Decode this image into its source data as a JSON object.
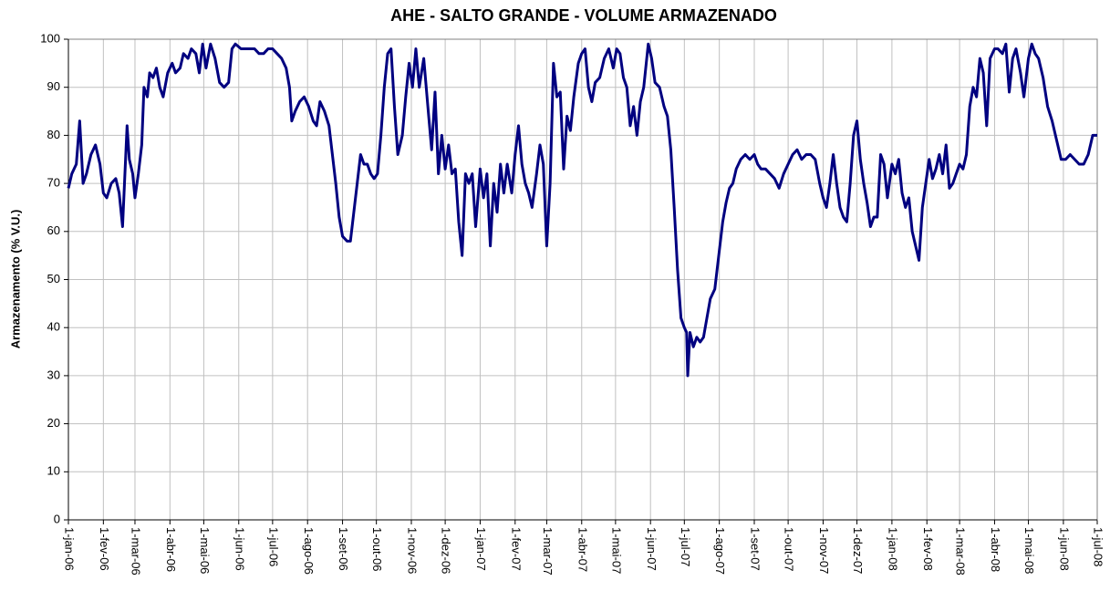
{
  "chart_data": {
    "type": "line",
    "title": "AHE - SALTO GRANDE - VOLUME ARMAZENADO",
    "y_label": "Armazenamento (% V.U.)",
    "grid": true,
    "ylim": [
      0,
      100
    ],
    "yticks": [
      0,
      10,
      20,
      30,
      40,
      50,
      60,
      70,
      80,
      90,
      100
    ],
    "xlim": [
      "2006-01-01",
      "2008-07-01"
    ],
    "xticks": [
      {
        "value": "2006-01-01",
        "label": "1-jan-06"
      },
      {
        "value": "2006-02-01",
        "label": "1-fev-06"
      },
      {
        "value": "2006-03-01",
        "label": "1-mar-06"
      },
      {
        "value": "2006-04-01",
        "label": "1-abr-06"
      },
      {
        "value": "2006-05-01",
        "label": "1-mai-06"
      },
      {
        "value": "2006-06-01",
        "label": "1-jun-06"
      },
      {
        "value": "2006-07-01",
        "label": "1-jul-06"
      },
      {
        "value": "2006-08-01",
        "label": "1-ago-06"
      },
      {
        "value": "2006-09-01",
        "label": "1-set-06"
      },
      {
        "value": "2006-10-01",
        "label": "1-out-06"
      },
      {
        "value": "2006-11-01",
        "label": "1-nov-06"
      },
      {
        "value": "2006-12-01",
        "label": "1-dez-06"
      },
      {
        "value": "2007-01-01",
        "label": "1-jan-07"
      },
      {
        "value": "2007-02-01",
        "label": "1-fev-07"
      },
      {
        "value": "2007-03-01",
        "label": "1-mar-07"
      },
      {
        "value": "2007-04-01",
        "label": "1-abr-07"
      },
      {
        "value": "2007-05-01",
        "label": "1-mai-07"
      },
      {
        "value": "2007-06-01",
        "label": "1-jun-07"
      },
      {
        "value": "2007-07-01",
        "label": "1-jul-07"
      },
      {
        "value": "2007-08-01",
        "label": "1-ago-07"
      },
      {
        "value": "2007-09-01",
        "label": "1-set-07"
      },
      {
        "value": "2007-10-01",
        "label": "1-out-07"
      },
      {
        "value": "2007-11-01",
        "label": "1-nov-07"
      },
      {
        "value": "2007-12-01",
        "label": "1-dez-07"
      },
      {
        "value": "2008-01-01",
        "label": "1-jan-08"
      },
      {
        "value": "2008-02-01",
        "label": "1-fev-08"
      },
      {
        "value": "2008-03-01",
        "label": "1-mar-08"
      },
      {
        "value": "2008-04-01",
        "label": "1-abr-08"
      },
      {
        "value": "2008-05-01",
        "label": "1-mai-08"
      },
      {
        "value": "2008-06-01",
        "label": "1-jun-08"
      },
      {
        "value": "2008-07-01",
        "label": "1-jul-08"
      }
    ],
    "x": [
      "2006-01-01",
      "2006-01-04",
      "2006-01-08",
      "2006-01-11",
      "2006-01-14",
      "2006-01-17",
      "2006-01-21",
      "2006-01-25",
      "2006-01-29",
      "2006-02-01",
      "2006-02-04",
      "2006-02-08",
      "2006-02-12",
      "2006-02-15",
      "2006-02-18",
      "2006-02-22",
      "2006-02-24",
      "2006-02-27",
      "2006-03-01",
      "2006-03-04",
      "2006-03-07",
      "2006-03-09",
      "2006-03-12",
      "2006-03-14",
      "2006-03-17",
      "2006-03-20",
      "2006-03-23",
      "2006-03-26",
      "2006-03-30",
      "2006-04-03",
      "2006-04-06",
      "2006-04-10",
      "2006-04-13",
      "2006-04-17",
      "2006-04-20",
      "2006-04-24",
      "2006-04-27",
      "2006-04-30",
      "2006-05-03",
      "2006-05-07",
      "2006-05-11",
      "2006-05-15",
      "2006-05-19",
      "2006-05-23",
      "2006-05-26",
      "2006-05-29",
      "2006-06-03",
      "2006-06-07",
      "2006-06-11",
      "2006-06-15",
      "2006-06-19",
      "2006-06-23",
      "2006-06-27",
      "2006-07-01",
      "2006-07-05",
      "2006-07-09",
      "2006-07-13",
      "2006-07-16",
      "2006-07-18",
      "2006-07-21",
      "2006-07-25",
      "2006-07-29",
      "2006-08-02",
      "2006-08-06",
      "2006-08-09",
      "2006-08-12",
      "2006-08-16",
      "2006-08-20",
      "2006-08-23",
      "2006-08-26",
      "2006-08-29",
      "2006-09-01",
      "2006-09-05",
      "2006-09-08",
      "2006-09-11",
      "2006-09-14",
      "2006-09-17",
      "2006-09-20",
      "2006-09-23",
      "2006-09-26",
      "2006-09-29",
      "2006-10-02",
      "2006-10-05",
      "2006-10-08",
      "2006-10-11",
      "2006-10-14",
      "2006-10-17",
      "2006-10-20",
      "2006-10-24",
      "2006-10-27",
      "2006-10-30",
      "2006-11-02",
      "2006-11-05",
      "2006-11-08",
      "2006-11-12",
      "2006-11-16",
      "2006-11-19",
      "2006-11-22",
      "2006-11-25",
      "2006-11-28",
      "2006-12-01",
      "2006-12-04",
      "2006-12-07",
      "2006-12-10",
      "2006-12-13",
      "2006-12-16",
      "2006-12-19",
      "2006-12-22",
      "2006-12-25",
      "2006-12-28",
      "2007-01-01",
      "2007-01-04",
      "2007-01-07",
      "2007-01-10",
      "2007-01-13",
      "2007-01-16",
      "2007-01-19",
      "2007-01-22",
      "2007-01-25",
      "2007-01-29",
      "2007-02-01",
      "2007-02-04",
      "2007-02-07",
      "2007-02-10",
      "2007-02-13",
      "2007-02-16",
      "2007-02-20",
      "2007-02-23",
      "2007-02-26",
      "2007-03-01",
      "2007-03-04",
      "2007-03-07",
      "2007-03-10",
      "2007-03-13",
      "2007-03-16",
      "2007-03-19",
      "2007-03-22",
      "2007-03-25",
      "2007-03-29",
      "2007-04-01",
      "2007-04-04",
      "2007-04-07",
      "2007-04-10",
      "2007-04-13",
      "2007-04-17",
      "2007-04-21",
      "2007-04-25",
      "2007-04-29",
      "2007-05-02",
      "2007-05-05",
      "2007-05-08",
      "2007-05-11",
      "2007-05-14",
      "2007-05-17",
      "2007-05-20",
      "2007-05-23",
      "2007-05-26",
      "2007-05-30",
      "2007-06-02",
      "2007-06-05",
      "2007-06-09",
      "2007-06-13",
      "2007-06-16",
      "2007-06-19",
      "2007-06-22",
      "2007-06-25",
      "2007-06-28",
      "2007-07-01",
      "2007-07-03",
      "2007-07-04",
      "2007-07-06",
      "2007-07-09",
      "2007-07-12",
      "2007-07-15",
      "2007-07-18",
      "2007-07-21",
      "2007-07-24",
      "2007-07-28",
      "2007-08-01",
      "2007-08-04",
      "2007-08-07",
      "2007-08-10",
      "2007-08-13",
      "2007-08-16",
      "2007-08-20",
      "2007-08-24",
      "2007-08-28",
      "2007-09-01",
      "2007-09-04",
      "2007-09-07",
      "2007-09-11",
      "2007-09-15",
      "2007-09-19",
      "2007-09-23",
      "2007-09-27",
      "2007-10-01",
      "2007-10-05",
      "2007-10-09",
      "2007-10-13",
      "2007-10-17",
      "2007-10-21",
      "2007-10-25",
      "2007-10-29",
      "2007-11-01",
      "2007-11-04",
      "2007-11-07",
      "2007-11-10",
      "2007-11-13",
      "2007-11-16",
      "2007-11-19",
      "2007-11-22",
      "2007-11-25",
      "2007-11-28",
      "2007-12-01",
      "2007-12-04",
      "2007-12-07",
      "2007-12-10",
      "2007-12-13",
      "2007-12-16",
      "2007-12-19",
      "2007-12-22",
      "2007-12-25",
      "2007-12-28",
      "2008-01-01",
      "2008-01-04",
      "2008-01-07",
      "2008-01-10",
      "2008-01-13",
      "2008-01-16",
      "2008-01-19",
      "2008-01-22",
      "2008-01-25",
      "2008-01-28",
      "2008-01-31",
      "2008-02-03",
      "2008-02-06",
      "2008-02-09",
      "2008-02-12",
      "2008-02-15",
      "2008-02-18",
      "2008-02-21",
      "2008-02-24",
      "2008-02-27",
      "2008-03-01",
      "2008-03-04",
      "2008-03-07",
      "2008-03-10",
      "2008-03-13",
      "2008-03-16",
      "2008-03-19",
      "2008-03-22",
      "2008-03-25",
      "2008-03-28",
      "2008-04-01",
      "2008-04-04",
      "2008-04-08",
      "2008-04-11",
      "2008-04-14",
      "2008-04-17",
      "2008-04-20",
      "2008-04-24",
      "2008-04-27",
      "2008-05-01",
      "2008-05-04",
      "2008-05-07",
      "2008-05-10",
      "2008-05-14",
      "2008-05-18",
      "2008-05-22",
      "2008-05-26",
      "2008-05-30",
      "2008-06-03",
      "2008-06-07",
      "2008-06-11",
      "2008-06-15",
      "2008-06-19",
      "2008-06-23",
      "2008-06-27",
      "2008-06-30",
      "2008-07-01"
    ],
    "series": [
      {
        "color": "#000080",
        "values": [
          69,
          72,
          74,
          83,
          70,
          72,
          76,
          78,
          74,
          68,
          67,
          70,
          71,
          68,
          61,
          82,
          75,
          72,
          67,
          72,
          78,
          90,
          88,
          93,
          92,
          94,
          90,
          88,
          93,
          95,
          93,
          94,
          97,
          96,
          98,
          97,
          93,
          99,
          94,
          99,
          96,
          91,
          90,
          91,
          98,
          99,
          98,
          98,
          98,
          98,
          97,
          97,
          98,
          98,
          97,
          96,
          94,
          90,
          83,
          85,
          87,
          88,
          86,
          83,
          82,
          87,
          85,
          82,
          76,
          70,
          63,
          59,
          58,
          58,
          64,
          70,
          76,
          74,
          74,
          72,
          71,
          72,
          80,
          90,
          97,
          98,
          86,
          76,
          80,
          88,
          95,
          90,
          98,
          90,
          96,
          85,
          77,
          89,
          72,
          80,
          73,
          78,
          72,
          73,
          62,
          55,
          72,
          70,
          72,
          61,
          73,
          67,
          72,
          57,
          70,
          64,
          74,
          68,
          74,
          68,
          76,
          82,
          74,
          70,
          68,
          65,
          72,
          78,
          74,
          57,
          70,
          95,
          88,
          89,
          73,
          84,
          81,
          88,
          95,
          97,
          98,
          90,
          87,
          91,
          92,
          96,
          98,
          94,
          98,
          97,
          92,
          90,
          82,
          86,
          80,
          87,
          90,
          99,
          96,
          91,
          90,
          86,
          84,
          77,
          65,
          52,
          42,
          40,
          39,
          30,
          39,
          36,
          38,
          37,
          38,
          42,
          46,
          48,
          56,
          62,
          66,
          69,
          70,
          73,
          75,
          76,
          75,
          76,
          74,
          73,
          73,
          72,
          71,
          69,
          72,
          74,
          76,
          77,
          75,
          76,
          76,
          75,
          70,
          67,
          65,
          70,
          76,
          70,
          65,
          63,
          62,
          70,
          80,
          83,
          75,
          70,
          66,
          61,
          63,
          63,
          76,
          74,
          67,
          74,
          72,
          75,
          68,
          65,
          67,
          60,
          57,
          54,
          65,
          70,
          75,
          71,
          73,
          76,
          72,
          78,
          69,
          70,
          72,
          74,
          73,
          76,
          86,
          90,
          88,
          96,
          93,
          82,
          96,
          98,
          98,
          97,
          99,
          89,
          96,
          98,
          93,
          88,
          96,
          99,
          97,
          96,
          92,
          86,
          83,
          79,
          75,
          75,
          76,
          75,
          74,
          74,
          76,
          80,
          80,
          80
        ]
      }
    ]
  }
}
